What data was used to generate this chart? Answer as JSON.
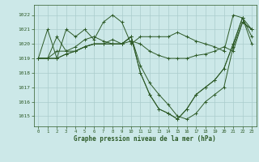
{
  "title": "Graphe pression niveau de la mer (hPa)",
  "background_color": "#cce8e8",
  "grid_color": "#aacccc",
  "line_color": "#2d5a27",
  "xlim": [
    -0.5,
    23.5
  ],
  "ylim": [
    1014.3,
    1022.7
  ],
  "yticks": [
    1015,
    1016,
    1017,
    1018,
    1019,
    1020,
    1021,
    1022
  ],
  "xticks": [
    0,
    1,
    2,
    3,
    4,
    5,
    6,
    7,
    8,
    9,
    10,
    11,
    12,
    13,
    14,
    15,
    16,
    17,
    18,
    19,
    20,
    21,
    22,
    23
  ],
  "series": [
    [
      1019.0,
      1021.0,
      1019.0,
      1021.0,
      1020.5,
      1021.0,
      1020.3,
      1021.5,
      1022.0,
      1021.5,
      1020.0,
      1020.5,
      1020.5,
      1020.5,
      1020.5,
      1020.8,
      1020.5,
      1020.2,
      1020.0,
      1019.8,
      1019.5,
      1022.0,
      1021.8,
      1020.5
    ],
    [
      1019.0,
      1019.0,
      1020.5,
      1019.5,
      1019.8,
      1020.3,
      1020.5,
      1020.2,
      1020.0,
      1020.0,
      1020.2,
      1020.0,
      1019.5,
      1019.2,
      1019.0,
      1019.0,
      1019.0,
      1019.2,
      1019.3,
      1019.5,
      1019.8,
      1019.5,
      1021.5,
      1021.0
    ],
    [
      1019.0,
      1019.0,
      1019.5,
      1019.5,
      1019.5,
      1019.8,
      1020.0,
      1020.0,
      1020.3,
      1020.0,
      1020.5,
      1018.5,
      1017.3,
      1016.5,
      1015.8,
      1015.0,
      1014.8,
      1015.2,
      1016.0,
      1016.5,
      1017.0,
      1019.8,
      1021.5,
      1021.0
    ],
    [
      1019.0,
      1019.0,
      1019.0,
      1019.3,
      1019.5,
      1019.8,
      1020.0,
      1020.0,
      1020.0,
      1020.0,
      1020.5,
      1018.0,
      1016.5,
      1015.5,
      1015.2,
      1014.8,
      1015.5,
      1016.5,
      1017.0,
      1017.5,
      1018.3,
      1020.0,
      1021.8,
      1021.0
    ],
    [
      1019.0,
      1019.0,
      1019.0,
      1019.3,
      1019.5,
      1019.8,
      1020.0,
      1020.0,
      1020.0,
      1020.0,
      1020.5,
      1018.0,
      1016.5,
      1015.5,
      1015.2,
      1014.8,
      1015.5,
      1016.5,
      1017.0,
      1017.5,
      1018.3,
      1020.0,
      1021.8,
      1020.0
    ]
  ]
}
